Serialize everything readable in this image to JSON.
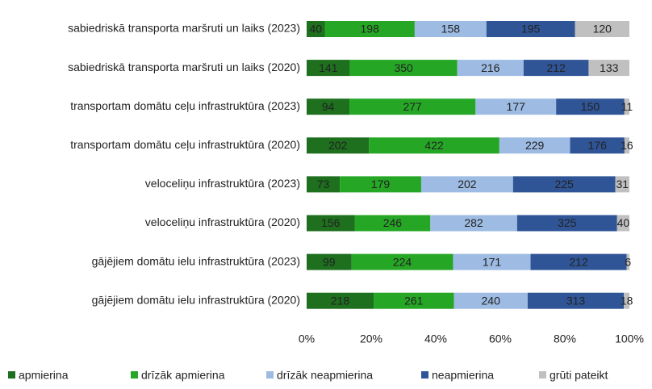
{
  "chart_data": {
    "type": "bar",
    "orientation": "horizontal",
    "stacking": "percent",
    "categories": [
      "sabiedriskā transporta maršruti un laiks (2023)",
      "sabiedriskā transporta maršruti un laiks (2020)",
      "transportam domātu ceļu infrastruktūra (2023)",
      "transportam domātu ceļu infrastruktūra (2020)",
      "veloceliņu infrastruktūra (2023)",
      "veloceliņu infrastruktūra (2020)",
      "gājējiem domātu ielu infrastruktūra (2023)",
      "gājējiem domātu ielu infrastruktūra (2020)"
    ],
    "series": [
      {
        "name": "apmierina",
        "color": "#1e6f1e",
        "values": [
          40,
          141,
          94,
          202,
          73,
          156,
          99,
          218
        ]
      },
      {
        "name": "drīzāk apmierina",
        "color": "#25a725",
        "values": [
          198,
          350,
          277,
          422,
          179,
          246,
          224,
          261
        ]
      },
      {
        "name": "drīzāk neapmierina",
        "color": "#9dbbe3",
        "values": [
          158,
          216,
          177,
          229,
          202,
          282,
          171,
          240
        ]
      },
      {
        "name": "neapmierina",
        "color": "#2f5597",
        "values": [
          195,
          212,
          150,
          176,
          225,
          325,
          212,
          313
        ]
      },
      {
        "name": "grūti pateikt",
        "color": "#c0c0c0",
        "values": [
          120,
          133,
          11,
          16,
          31,
          40,
          6,
          18
        ]
      }
    ],
    "xlim": [
      0,
      100
    ],
    "xticks": [
      {
        "value": 0,
        "label": "0%"
      },
      {
        "value": 20,
        "label": "20%"
      },
      {
        "value": 40,
        "label": "40%"
      },
      {
        "value": 60,
        "label": "60%"
      },
      {
        "value": 80,
        "label": "80%"
      },
      {
        "value": 100,
        "label": "100%"
      }
    ],
    "legend": "bottom"
  }
}
